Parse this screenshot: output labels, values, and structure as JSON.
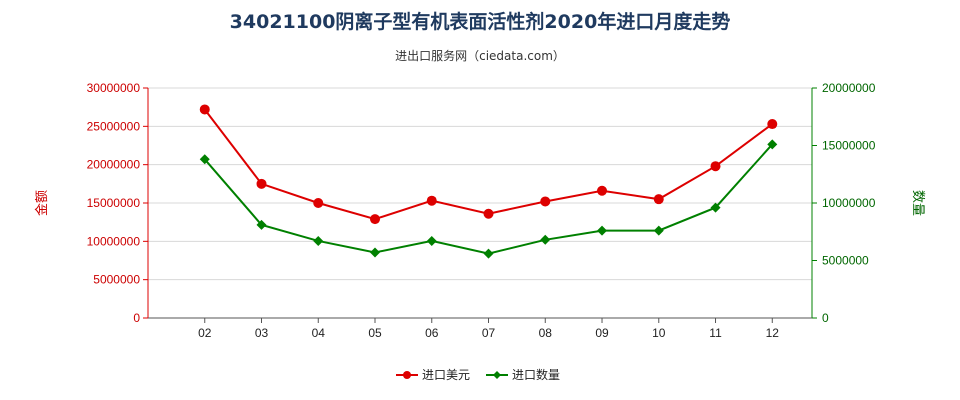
{
  "chart_data": {
    "type": "line",
    "title": "34021100阴离子型有机表面活性剂2020年进口月度走势",
    "subtitle": "进出口服务网（ciedata.com）",
    "categories": [
      "02",
      "03",
      "04",
      "05",
      "06",
      "07",
      "08",
      "09",
      "10",
      "11",
      "12"
    ],
    "y_left": {
      "label": "金额",
      "range": [
        0,
        30000000
      ],
      "ticks": [
        "0",
        "5000000",
        "10000000",
        "15000000",
        "20000000",
        "25000000",
        "30000000"
      ],
      "color": "#dd0000"
    },
    "y_right": {
      "label": "数量",
      "range": [
        0,
        20000000
      ],
      "ticks": [
        "0",
        "5000000",
        "10000000",
        "15000000",
        "20000000"
      ],
      "color": "#008000"
    },
    "series": [
      {
        "name": "进口美元",
        "axis": "left",
        "color": "#dd0000",
        "marker": "circle",
        "values": [
          27200000,
          17500000,
          15000000,
          12900000,
          15300000,
          13600000,
          15200000,
          16600000,
          15500000,
          19800000,
          25300000
        ]
      },
      {
        "name": "进口数量",
        "axis": "right",
        "color": "#008000",
        "marker": "diamond",
        "values": [
          13800000,
          8100000,
          6700000,
          5700000,
          6700000,
          5600000,
          6800000,
          7600000,
          7600000,
          9600000,
          15100000
        ]
      }
    ],
    "grid": true,
    "legend": "bottom-center"
  }
}
